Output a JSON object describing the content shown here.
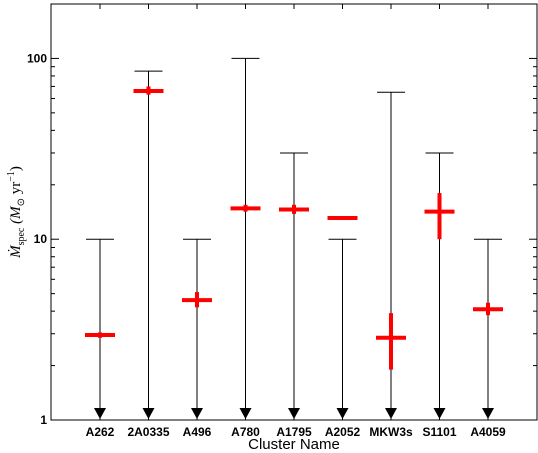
{
  "chart_data": {
    "type": "scatter",
    "xlabel": "Cluster Name",
    "ylabel_parts": {
      "main": "Ṁ",
      "sub": "spec",
      "unit_open": "(M",
      "unit_sub": "⊙",
      "unit_rest": " yr",
      "unit_sup": "−1",
      "unit_close": ")"
    },
    "yscale": "log",
    "ylim": [
      1,
      200
    ],
    "ytick_labels": [
      {
        "value": 1,
        "label": "1"
      },
      {
        "value": 10,
        "label": "10"
      },
      {
        "value": 100,
        "label": "100"
      }
    ],
    "categories": [
      "A262",
      "2A0335",
      "A496",
      "A780",
      "A1795",
      "A2052",
      "MKW3s",
      "S1101",
      "A4059"
    ],
    "upper_limits": [
      10,
      85,
      10,
      100,
      30,
      10,
      65,
      30,
      10
    ],
    "spec_values": [
      2.95,
      66,
      4.6,
      14.8,
      14.6,
      13.1,
      2.85,
      14.2,
      4.1
    ],
    "spec_err_low": [
      2.85,
      63,
      4.2,
      14.2,
      13.8,
      13.1,
      1.9,
      10.0,
      3.8
    ],
    "spec_err_high": [
      3.05,
      70,
      5.1,
      15.5,
      15.5,
      13.1,
      3.9,
      18.0,
      4.45
    ],
    "grid": false,
    "colors": {
      "limit_line": "#000000",
      "spec_marker": "#ff0000"
    }
  }
}
